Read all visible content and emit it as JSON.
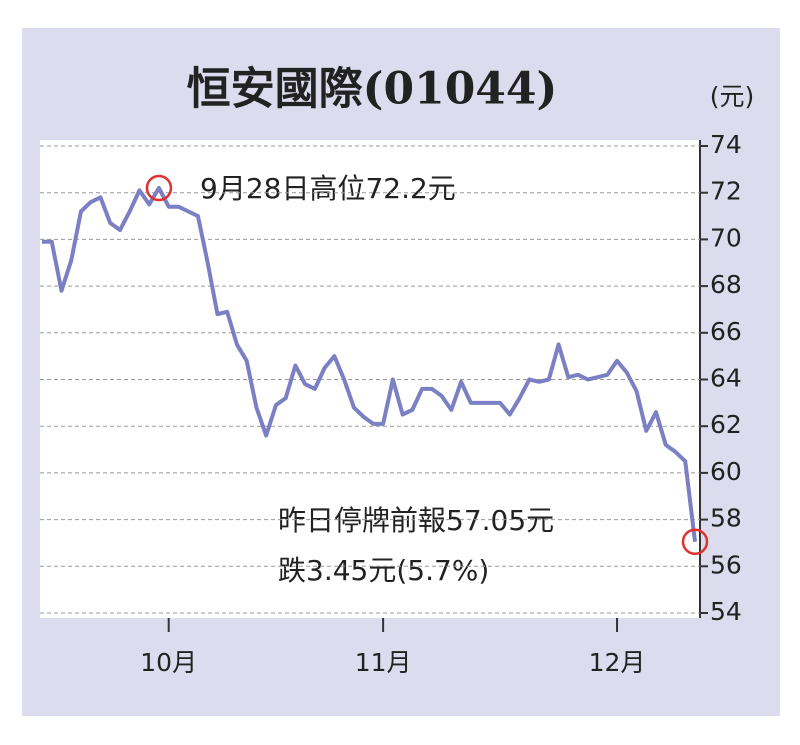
{
  "chart_data": {
    "type": "line",
    "title": "恒安國際(01044)",
    "y_axis_label": "(元)",
    "categories": [
      null,
      null,
      null,
      null,
      null,
      null,
      null,
      null,
      null,
      null,
      null,
      null,
      null,
      "10月",
      null,
      null,
      null,
      null,
      null,
      null,
      null,
      null,
      null,
      null,
      null,
      null,
      null,
      null,
      null,
      null,
      null,
      null,
      null,
      null,
      null,
      "11月",
      null,
      null,
      null,
      null,
      null,
      null,
      null,
      null,
      null,
      null,
      null,
      null,
      null,
      null,
      null,
      null,
      null,
      null,
      null,
      null,
      null,
      null,
      null,
      "12月",
      null,
      null,
      null,
      null,
      null,
      null,
      null,
      null
    ],
    "series": [
      {
        "name": "恒安國際",
        "color": "#7b7fc4",
        "values": [
          69.9,
          69.9,
          67.8,
          69.1,
          71.2,
          71.6,
          71.8,
          70.7,
          70.4,
          71.2,
          72.1,
          71.5,
          72.2,
          71.4,
          71.4,
          71.2,
          71.0,
          69.0,
          66.8,
          66.9,
          65.5,
          64.8,
          62.8,
          61.6,
          62.9,
          63.2,
          64.6,
          63.8,
          63.6,
          64.5,
          65.0,
          64.0,
          62.8,
          62.4,
          62.1,
          62.1,
          64.0,
          62.5,
          62.7,
          63.6,
          63.6,
          63.3,
          62.7,
          63.9,
          63.0,
          63.0,
          63.0,
          63.0,
          62.5,
          63.2,
          64.0,
          63.9,
          64.0,
          65.5,
          64.1,
          64.2,
          64.0,
          64.1,
          64.2,
          64.8,
          64.3,
          63.5,
          61.8,
          62.6,
          61.2,
          60.9,
          60.5,
          57.05
        ]
      }
    ],
    "annotations": [
      "9月28日高位72.2元",
      "昨日停牌前報57.05元",
      "跌3.45元(5.7%)"
    ],
    "ylim": [
      54,
      74
    ],
    "yticks": [
      54,
      56,
      58,
      60,
      62,
      64,
      66,
      68,
      70,
      72,
      74
    ],
    "grid": true,
    "marker_color": "#e03030"
  }
}
